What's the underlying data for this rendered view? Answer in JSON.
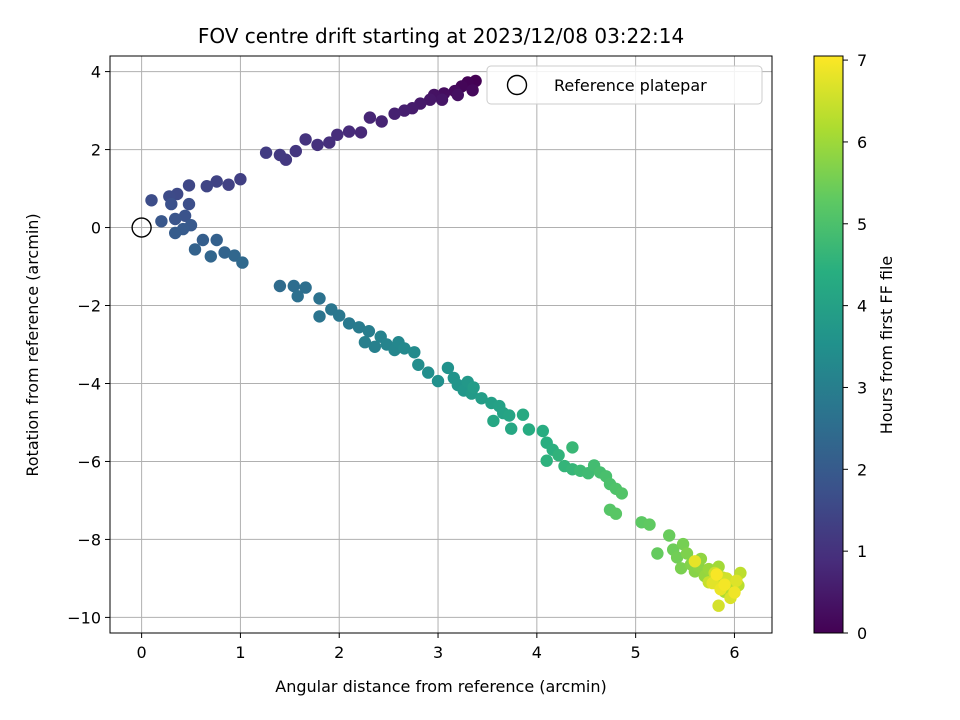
{
  "chart_data": {
    "type": "scatter",
    "title": "FOV centre drift starting at 2023/12/08 03:22:14",
    "xlabel": "Angular distance from reference (arcmin)",
    "ylabel": "Rotation from reference (arcmin)",
    "xlim": [
      -0.32,
      6.38
    ],
    "ylim": [
      -10.4,
      4.4
    ],
    "xticks": [
      0,
      1,
      2,
      3,
      4,
      5,
      6
    ],
    "yticks": [
      4,
      2,
      0,
      -2,
      -4,
      -6,
      -8,
      -10
    ],
    "xtick_labels": [
      "0",
      "1",
      "2",
      "3",
      "4",
      "5",
      "6"
    ],
    "ytick_labels": [
      "4",
      "2",
      "0",
      "−2",
      "−4",
      "−6",
      "−8",
      "−10"
    ],
    "grid": true,
    "legend": {
      "label": "Reference platepar",
      "placement": "upper-right"
    },
    "reference_point": {
      "x": 0,
      "y": 0
    },
    "colorbar": {
      "label": "Hours from first FF file",
      "min": 0,
      "max": 7.05,
      "ticks": [
        0,
        1,
        2,
        3,
        4,
        5,
        6,
        7
      ],
      "tick_labels": [
        "0",
        "1",
        "2",
        "3",
        "4",
        "5",
        "6",
        "7"
      ],
      "colormap": "viridis"
    },
    "points": [
      [
        3.38,
        3.76,
        0.0
      ],
      [
        3.3,
        3.72,
        0.05
      ],
      [
        3.24,
        3.62,
        0.1
      ],
      [
        3.35,
        3.52,
        0.15
      ],
      [
        3.17,
        3.5,
        0.2
      ],
      [
        3.06,
        3.44,
        0.25
      ],
      [
        3.2,
        3.4,
        0.3
      ],
      [
        2.96,
        3.4,
        0.35
      ],
      [
        3.04,
        3.28,
        0.4
      ],
      [
        2.92,
        3.28,
        0.45
      ],
      [
        2.82,
        3.18,
        0.5
      ],
      [
        2.74,
        3.06,
        0.55
      ],
      [
        2.66,
        3.0,
        0.6
      ],
      [
        2.56,
        2.92,
        0.65
      ],
      [
        2.43,
        2.72,
        0.7
      ],
      [
        2.31,
        2.82,
        0.75
      ],
      [
        2.22,
        2.44,
        0.8
      ],
      [
        2.1,
        2.46,
        0.85
      ],
      [
        1.98,
        2.38,
        0.9
      ],
      [
        1.9,
        2.18,
        0.95
      ],
      [
        1.78,
        2.12,
        1.0
      ],
      [
        1.66,
        2.26,
        1.05
      ],
      [
        1.56,
        1.96,
        1.1
      ],
      [
        1.46,
        1.74,
        1.15
      ],
      [
        1.4,
        1.86,
        1.2
      ],
      [
        1.26,
        1.92,
        1.25
      ],
      [
        1.0,
        1.24,
        1.3
      ],
      [
        0.88,
        1.1,
        1.35
      ],
      [
        0.76,
        1.18,
        1.4
      ],
      [
        0.66,
        1.06,
        1.45
      ],
      [
        0.48,
        1.08,
        1.5
      ],
      [
        0.36,
        0.86,
        1.55
      ],
      [
        0.28,
        0.8,
        1.6
      ],
      [
        0.1,
        0.7,
        1.65
      ],
      [
        0.48,
        0.6,
        1.7
      ],
      [
        0.3,
        0.6,
        1.75
      ],
      [
        0.44,
        0.3,
        1.8
      ],
      [
        0.34,
        0.22,
        1.85
      ],
      [
        0.2,
        0.16,
        1.9
      ],
      [
        0.5,
        0.06,
        1.95
      ],
      [
        0.42,
        -0.04,
        2.0
      ],
      [
        0.34,
        -0.14,
        2.05
      ],
      [
        0.62,
        -0.32,
        2.1
      ],
      [
        0.76,
        -0.32,
        2.15
      ],
      [
        0.54,
        -0.56,
        2.2
      ],
      [
        0.84,
        -0.64,
        2.25
      ],
      [
        0.7,
        -0.74,
        2.3
      ],
      [
        0.94,
        -0.72,
        2.35
      ],
      [
        1.02,
        -0.9,
        2.4
      ],
      [
        1.4,
        -1.5,
        2.45
      ],
      [
        1.54,
        -1.5,
        2.5
      ],
      [
        1.66,
        -1.54,
        2.55
      ],
      [
        1.58,
        -1.76,
        2.6
      ],
      [
        1.8,
        -1.82,
        2.65
      ],
      [
        1.8,
        -2.28,
        2.7
      ],
      [
        1.92,
        -2.1,
        2.75
      ],
      [
        2.0,
        -2.26,
        2.8
      ],
      [
        2.1,
        -2.46,
        2.85
      ],
      [
        2.2,
        -2.56,
        2.9
      ],
      [
        2.3,
        -2.66,
        2.95
      ],
      [
        2.26,
        -2.94,
        3.0
      ],
      [
        2.36,
        -3.06,
        3.05
      ],
      [
        2.42,
        -2.8,
        3.1
      ],
      [
        2.48,
        -3.0,
        3.15
      ],
      [
        2.56,
        -3.14,
        3.2
      ],
      [
        2.6,
        -2.94,
        3.25
      ],
      [
        2.66,
        -3.1,
        3.3
      ],
      [
        2.76,
        -3.2,
        3.35
      ],
      [
        2.8,
        -3.52,
        3.4
      ],
      [
        2.9,
        -3.72,
        3.45
      ],
      [
        3.0,
        -3.94,
        3.5
      ],
      [
        3.1,
        -3.6,
        3.55
      ],
      [
        3.16,
        -3.86,
        3.6
      ],
      [
        3.2,
        -4.04,
        3.65
      ],
      [
        3.26,
        -4.18,
        3.7
      ],
      [
        3.3,
        -3.96,
        3.75
      ],
      [
        3.34,
        -4.26,
        3.8
      ],
      [
        3.36,
        -4.1,
        3.85
      ],
      [
        3.44,
        -4.38,
        3.9
      ],
      [
        3.54,
        -4.5,
        3.95
      ],
      [
        3.62,
        -4.58,
        4.0
      ],
      [
        3.66,
        -4.76,
        4.05
      ],
      [
        3.72,
        -4.82,
        4.1
      ],
      [
        3.56,
        -4.96,
        4.15
      ],
      [
        3.74,
        -5.16,
        4.2
      ],
      [
        3.86,
        -4.8,
        4.25
      ],
      [
        3.92,
        -5.18,
        4.3
      ],
      [
        4.06,
        -5.22,
        4.35
      ],
      [
        4.1,
        -5.52,
        4.4
      ],
      [
        4.16,
        -5.7,
        4.45
      ],
      [
        4.1,
        -5.98,
        4.5
      ],
      [
        4.22,
        -5.84,
        4.55
      ],
      [
        4.28,
        -6.12,
        4.6
      ],
      [
        4.36,
        -6.2,
        4.65
      ],
      [
        4.36,
        -5.64,
        4.7
      ],
      [
        4.44,
        -6.24,
        4.75
      ],
      [
        4.52,
        -6.3,
        4.8
      ],
      [
        4.58,
        -6.1,
        4.85
      ],
      [
        4.64,
        -6.28,
        4.9
      ],
      [
        4.7,
        -6.38,
        4.95
      ],
      [
        4.74,
        -6.58,
        5.0
      ],
      [
        4.8,
        -6.7,
        5.05
      ],
      [
        4.86,
        -6.82,
        5.1
      ],
      [
        4.74,
        -7.24,
        5.15
      ],
      [
        4.8,
        -7.34,
        5.2
      ],
      [
        5.06,
        -7.56,
        5.25
      ],
      [
        5.14,
        -7.62,
        5.3
      ],
      [
        5.22,
        -8.36,
        5.35
      ],
      [
        5.34,
        -7.9,
        5.4
      ],
      [
        5.38,
        -8.26,
        5.45
      ],
      [
        5.42,
        -8.46,
        5.5
      ],
      [
        5.48,
        -8.12,
        5.55
      ],
      [
        5.46,
        -8.74,
        5.6
      ],
      [
        5.52,
        -8.36,
        5.65
      ],
      [
        5.56,
        -8.64,
        5.7
      ],
      [
        5.6,
        -8.82,
        5.75
      ],
      [
        5.64,
        -8.7,
        5.8
      ],
      [
        5.66,
        -8.5,
        5.85
      ],
      [
        5.7,
        -8.94,
        5.9
      ],
      [
        5.74,
        -8.76,
        5.95
      ],
      [
        5.8,
        -9.04,
        6.0
      ],
      [
        5.84,
        -8.7,
        6.05
      ],
      [
        5.86,
        -9.2,
        6.1
      ],
      [
        5.9,
        -9.34,
        6.15
      ],
      [
        5.94,
        -9.1,
        6.2
      ],
      [
        5.98,
        -9.26,
        6.25
      ],
      [
        6.04,
        -9.18,
        6.3
      ],
      [
        6.06,
        -8.86,
        6.35
      ],
      [
        5.88,
        -8.98,
        6.4
      ],
      [
        5.74,
        -9.1,
        6.45
      ],
      [
        5.8,
        -8.86,
        6.5
      ],
      [
        5.92,
        -9.0,
        6.55
      ],
      [
        5.84,
        -9.7,
        6.6
      ],
      [
        5.96,
        -9.5,
        6.65
      ],
      [
        6.02,
        -9.06,
        6.7
      ],
      [
        5.78,
        -9.12,
        6.75
      ],
      [
        5.6,
        -8.56,
        6.8
      ],
      [
        5.86,
        -9.28,
        6.85
      ],
      [
        6.0,
        -9.36,
        6.9
      ],
      [
        5.9,
        -9.16,
        6.95
      ],
      [
        5.82,
        -8.9,
        7.0
      ]
    ]
  }
}
